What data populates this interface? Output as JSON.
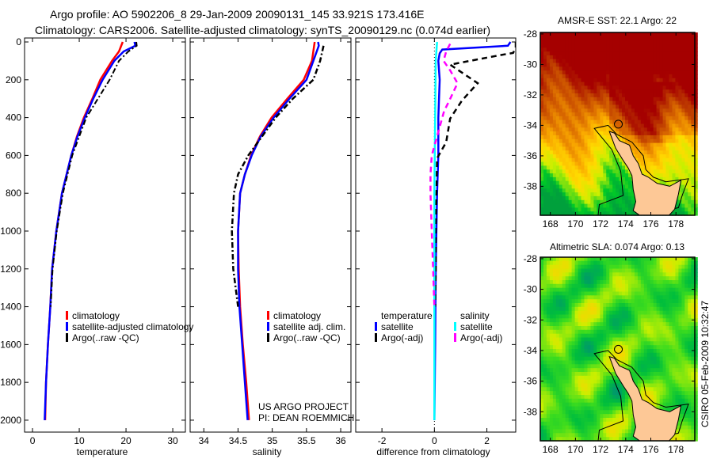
{
  "title_line1": "Argo profile: AO 5902206_8 29-Jan-2009 20090131_145 33.921S 173.416E",
  "title_line2": "Climatology: CARS2006. Satellite-adjusted climatology: synTS_20090129.nc (0.074d earlier)",
  "credit": "CSIRO 05-Feb-2009 10:32:47",
  "project": {
    "line1": "US ARGO PROJECT",
    "line2": "PI: DEAN ROEMMICH"
  },
  "colors": {
    "clim": "#ff0000",
    "sat": "#0000ff",
    "argo": "#000000",
    "sal_sat": "#00ffff",
    "sal_argo": "#ff00ff"
  },
  "chart_data": [
    {
      "type": "line",
      "xlabel": "temperature",
      "ylabel": "",
      "xlim": [
        -1.7,
        32.7
      ],
      "ylim": [
        -21,
        2063
      ],
      "y_inverted": true,
      "xticks": [
        0,
        10,
        20,
        30
      ],
      "yticks": [
        0,
        200,
        400,
        600,
        800,
        1000,
        1200,
        1400,
        1600,
        1800,
        2000
      ],
      "legend": [
        "climatology",
        "satellite-adjusted climatology",
        "Argo(..raw -QC)"
      ],
      "series": [
        {
          "name": "climatology",
          "depth": [
            0,
            50,
            100,
            200,
            300,
            400,
            500,
            600,
            800,
            1000,
            1200,
            1400,
            1600,
            1800,
            2000
          ],
          "values": [
            19.3,
            18.5,
            17,
            14.5,
            12.8,
            11,
            9.5,
            8.3,
            6.3,
            5.1,
            4.2,
            3.8,
            3.3,
            2.9,
            2.7
          ]
        },
        {
          "name": "satellite-adjusted climatology",
          "depth": [
            0,
            20,
            50,
            100,
            200,
            300,
            400,
            500,
            600,
            800,
            1000,
            1200,
            1400,
            1600,
            1800,
            2000
          ],
          "values": [
            21.8,
            22,
            19.5,
            17.5,
            15,
            13,
            11.2,
            9.6,
            8.3,
            6.3,
            5.1,
            4.2,
            3.8,
            3.3,
            2.9,
            2.6
          ]
        },
        {
          "name": "Argo(..raw -QC)",
          "depth": [
            0,
            20,
            50,
            100,
            200,
            300,
            400,
            500,
            600,
            800,
            1000,
            1200,
            1400
          ],
          "values": [
            22.2,
            22.3,
            20.5,
            18.5,
            16.5,
            14,
            11.5,
            10,
            8.5,
            6.5,
            5.2,
            4.3,
            3.9
          ]
        }
      ]
    },
    {
      "type": "line",
      "xlabel": "salinity",
      "xlim": [
        33.8,
        36.15
      ],
      "ylim": [
        -21,
        2063
      ],
      "y_inverted": true,
      "xticks": [
        34,
        34.5,
        35,
        35.5,
        36
      ],
      "legend": [
        "climatology",
        "satellite adj. clim.",
        "Argo(..raw -QC)"
      ],
      "series": [
        {
          "name": "climatology",
          "depth": [
            0,
            100,
            200,
            300,
            400,
            500,
            600,
            700,
            800,
            1000,
            1200,
            1400,
            1600,
            1800,
            2000
          ],
          "values": [
            35.62,
            35.58,
            35.46,
            35.22,
            34.99,
            34.82,
            34.69,
            34.6,
            34.53,
            34.5,
            34.51,
            34.53,
            34.57,
            34.62,
            34.66
          ]
        },
        {
          "name": "satellite adj. clim.",
          "depth": [
            0,
            20,
            100,
            200,
            300,
            400,
            500,
            600,
            700,
            800,
            1000,
            1200,
            1400,
            1600,
            1800,
            2000
          ],
          "values": [
            35.67,
            35.68,
            35.6,
            35.5,
            35.25,
            35.02,
            34.83,
            34.7,
            34.6,
            34.53,
            34.5,
            34.5,
            34.52,
            34.56,
            34.6,
            34.64
          ]
        },
        {
          "name": "Argo(..raw -QC)",
          "depth": [
            20,
            100,
            150,
            200,
            250,
            300,
            400,
            500,
            600,
            700,
            800,
            1000,
            1200,
            1400
          ],
          "values": [
            35.75,
            35.7,
            35.65,
            35.6,
            35.45,
            35.3,
            35.05,
            34.85,
            34.65,
            34.5,
            34.44,
            34.41,
            34.43,
            34.5
          ]
        }
      ]
    },
    {
      "type": "line",
      "xlabel": "difference from climatology",
      "xlim": [
        -3,
        3.1
      ],
      "ylim": [
        -21,
        2063
      ],
      "y_inverted": true,
      "xticks": [
        -2,
        0,
        2
      ],
      "legend_headers": [
        "temperature",
        "salinity"
      ],
      "legend": [
        "satellite",
        "Argo(-adj)",
        "satellite",
        "Argo(-adj)"
      ],
      "series": [
        {
          "name": "temperature satellite",
          "depth": [
            0,
            20,
            40,
            60,
            100,
            200,
            400,
            600,
            800,
            1200,
            1600,
            2000
          ],
          "values": [
            2.9,
            2.8,
            0.3,
            0.2,
            0.15,
            0.2,
            0.15,
            0.15,
            0.1,
            0.05,
            0.03,
            0.0
          ]
        },
        {
          "name": "temperature Argo(-adj)",
          "depth": [
            0,
            30,
            58,
            70,
            120,
            218,
            310,
            405,
            530,
            615,
            800,
            1000,
            1200,
            1400
          ],
          "values": [
            3.1,
            3.1,
            3.0,
            2.5,
            0.6,
            1.65,
            1.05,
            0.6,
            0.45,
            0.1,
            0.08,
            0.05,
            0.05,
            0.03
          ]
        },
        {
          "name": "salinity satellite",
          "depth": [
            0,
            100,
            400,
            800,
            1200,
            1600,
            2000
          ],
          "values": [
            0.1,
            0.05,
            0.03,
            0.0,
            0.0,
            0.0,
            0.0
          ]
        },
        {
          "name": "salinity Argo(-adj)",
          "depth": [
            10,
            50,
            100,
            150,
            218,
            310,
            365,
            500,
            600,
            700,
            800,
            1000,
            1200,
            1400
          ],
          "values": [
            0.6,
            0.45,
            0.35,
            0.6,
            0.88,
            0.57,
            0.37,
            0.1,
            -0.1,
            -0.15,
            -0.15,
            -0.1,
            -0.05,
            0.0
          ]
        }
      ]
    },
    {
      "type": "heatmap",
      "title": "AMSR-E SST: 22.1 Argo: 22",
      "xlim": [
        167.2,
        179.5
      ],
      "ylim": [
        -39.9,
        -27.9
      ],
      "xticks": [
        168,
        170,
        172,
        174,
        176,
        178
      ],
      "yticks": [
        -28,
        -30,
        -32,
        -34,
        -36,
        -38
      ],
      "argo_position": {
        "lon": 173.416,
        "lat": -33.921
      }
    },
    {
      "type": "heatmap",
      "title": "Altimetric SLA: 0.074 Argo: 0.13",
      "xlim": [
        167.2,
        179.5
      ],
      "ylim": [
        -39.9,
        -27.9
      ],
      "xticks": [
        168,
        170,
        172,
        174,
        176,
        178
      ],
      "yticks": [
        -28,
        -30,
        -32,
        -34,
        -36,
        -38
      ],
      "argo_position": {
        "lon": 173.416,
        "lat": -33.921
      }
    }
  ]
}
